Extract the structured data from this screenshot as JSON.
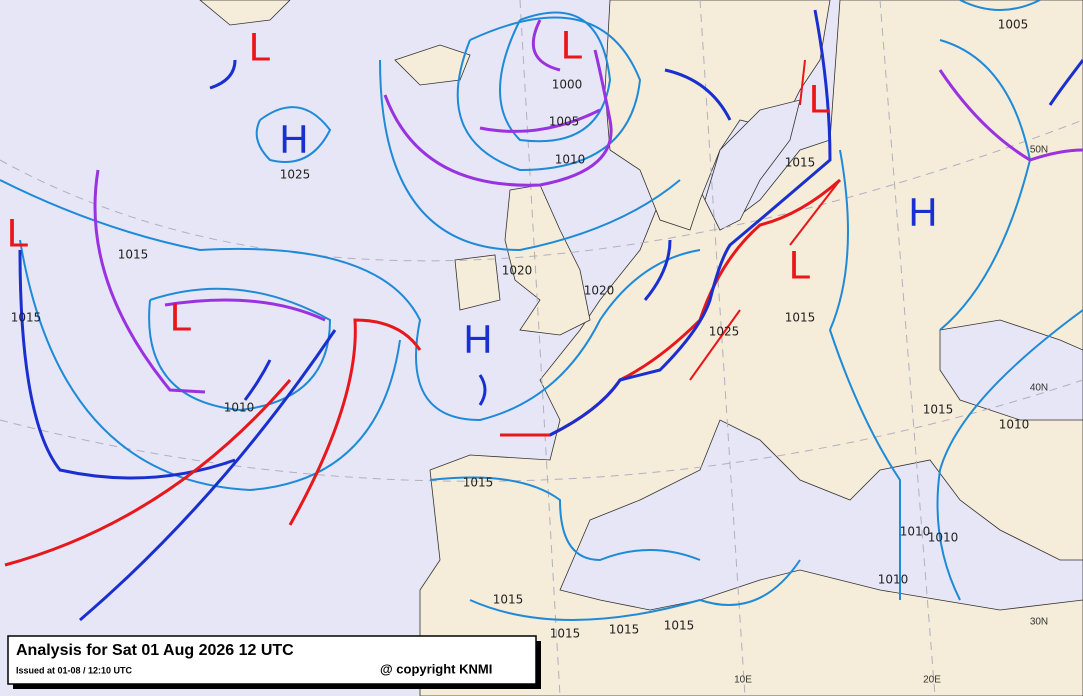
{
  "pressure_centers": [
    "L",
    "L",
    "H",
    "L",
    "L",
    "H",
    "L",
    "L",
    "H"
  ],
  "isobar_labels": [
    "1000",
    "1005",
    "1010",
    "1025",
    "1015",
    "1015",
    "1010",
    "1020",
    "1020",
    "1015",
    "1015",
    "1025",
    "1015",
    "1015",
    "1010",
    "1010",
    "1010",
    "1010",
    "1015",
    "1015",
    "1015",
    "1015",
    "1005"
  ],
  "graticule_labels": [
    "50N",
    "40N",
    "30N",
    "10E",
    "20E"
  ],
  "footer": {
    "title": "Analysis for Sat 01 Aug 2026 12 UTC",
    "issued": "Issued at 01-08 / 12:10 UTC",
    "copyright": "@ copyright KNMI"
  }
}
